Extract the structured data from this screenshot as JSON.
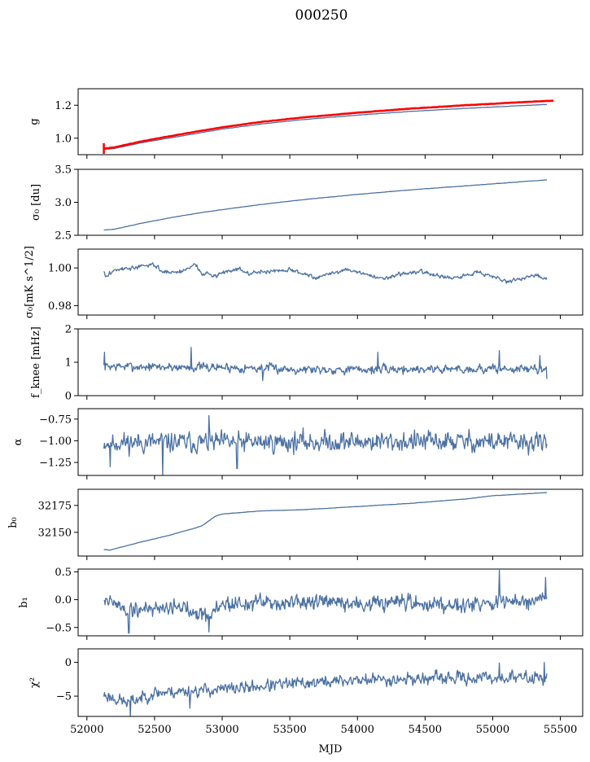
{
  "figure": {
    "title": "000250"
  },
  "chart_data": {
    "type": "line",
    "title": "000250",
    "shared_x": {
      "label": "MJD",
      "range": [
        51935,
        55665
      ],
      "ticks": [
        52000,
        52500,
        53000,
        53500,
        54000,
        54500,
        55000,
        55500
      ],
      "tick_labels": [
        "52000",
        "52500",
        "53000",
        "53500",
        "54000",
        "54500",
        "55000",
        "55500"
      ],
      "data_span": [
        52125,
        55400
      ]
    },
    "panels": [
      {
        "id": "g",
        "ylabel": "g",
        "ylabel_html": "g",
        "ylim": [
          0.9,
          1.3
        ],
        "yticks": [
          1.0,
          1.2
        ],
        "ytick_labels": [
          "1.0",
          "1.2"
        ],
        "series": [
          {
            "name": "g",
            "color": "#4c72a4",
            "kind": "smooth",
            "x": [
              52125,
              52200,
              52400,
              52600,
              52800,
              53000,
              53300,
              53600,
              54000,
              54400,
              54800,
              55200,
              55400
            ],
            "y": [
              0.932,
              0.937,
              0.972,
              1.0,
              1.027,
              1.055,
              1.087,
              1.113,
              1.14,
              1.163,
              1.181,
              1.197,
              1.205
            ]
          },
          {
            "name": "g model",
            "color": "#ff0000",
            "kind": "smooth",
            "width": 2.6,
            "x": [
              52125,
              52200,
              52400,
              52600,
              52800,
              53000,
              53300,
              53600,
              54000,
              54400,
              54800,
              55200,
              55450
            ],
            "y": [
              0.937,
              0.944,
              0.98,
              1.01,
              1.039,
              1.066,
              1.1,
              1.126,
              1.155,
              1.18,
              1.2,
              1.218,
              1.228
            ]
          }
        ],
        "error_bar": {
          "x": 52125,
          "y_low": 0.905,
          "y_high": 0.97,
          "color": "#ff0000"
        }
      },
      {
        "id": "sigma0_du",
        "ylabel": "σ₀ [du]",
        "ylim": [
          2.5,
          3.5
        ],
        "yticks": [
          2.5,
          3.0,
          3.5
        ],
        "ytick_labels": [
          "2.5",
          "3.0",
          "3.5"
        ],
        "series": [
          {
            "name": "sigma0",
            "color": "#4c72a4",
            "kind": "smooth",
            "x": [
              52125,
              52200,
              52400,
              52600,
              52800,
              53000,
              53300,
              53600,
              54000,
              54400,
              54800,
              55200,
              55400
            ],
            "y": [
              2.58,
              2.59,
              2.68,
              2.76,
              2.83,
              2.89,
              2.97,
              3.04,
              3.12,
              3.19,
              3.25,
              3.31,
              3.34
            ]
          }
        ]
      },
      {
        "id": "sigma0_mKs",
        "ylabel": "σ₀[mK s^1/2]",
        "ylim": [
          0.975,
          1.01
        ],
        "yticks": [
          0.98,
          1.0
        ],
        "ytick_labels": [
          "0.98",
          "1.00"
        ],
        "series": [
          {
            "name": "sigma0 calibrated",
            "color": "#4c72a4",
            "kind": "noisy",
            "noise": 0.0009,
            "seed": 3,
            "x": [
              52125,
              52140,
              52200,
              52350,
              52500,
              52550,
              52700,
              52800,
              52850,
              52950,
              53100,
              53200,
              53300,
              53500,
              53700,
              53800,
              53900,
              54000,
              54200,
              54300,
              54500,
              54700,
              54800,
              54900,
              55100,
              55200,
              55300,
              55400
            ],
            "y": [
              0.998,
              0.995,
              0.999,
              1.0,
              1.002,
              0.998,
              0.998,
              1.002,
              0.997,
              0.996,
              1.0,
              0.997,
              0.998,
              0.999,
              0.995,
              0.997,
              0.999,
              0.998,
              0.994,
              0.997,
              0.998,
              0.994,
              0.996,
              0.998,
              0.993,
              0.994,
              0.996,
              0.994
            ]
          }
        ]
      },
      {
        "id": "fknee",
        "ylabel": "f_knee [mHz]",
        "ylim": [
          0,
          2
        ],
        "yticks": [
          0,
          1,
          2
        ],
        "ytick_labels": [
          "0",
          "1",
          "2"
        ],
        "series": [
          {
            "name": "fknee",
            "color": "#4c72a4",
            "kind": "noisy",
            "noise": 0.11,
            "seed": 7,
            "spikes": [
              [
                52130,
                1.3
              ],
              [
                52770,
                1.45
              ],
              [
                53300,
                0.45
              ],
              [
                54150,
                1.3
              ],
              [
                55050,
                1.35
              ],
              [
                55350,
                1.2
              ],
              [
                55400,
                0.5
              ]
            ],
            "x": [
              52125,
              52500,
              53000,
              53500,
              54000,
              54500,
              55000,
              55400
            ],
            "y": [
              0.88,
              0.86,
              0.85,
              0.8,
              0.78,
              0.8,
              0.8,
              0.8
            ]
          }
        ]
      },
      {
        "id": "alpha",
        "ylabel": "α",
        "ylim": [
          -1.4,
          -0.63
        ],
        "yticks": [
          -1.25,
          -1.0,
          -0.75
        ],
        "ytick_labels": [
          "−1.25",
          "−1.00",
          "−0.75"
        ],
        "series": [
          {
            "name": "alpha",
            "color": "#4c72a4",
            "kind": "noisy",
            "noise": 0.095,
            "seed": 11,
            "spikes": [
              [
                52560,
                -1.4
              ],
              [
                52900,
                -0.71
              ],
              [
                52170,
                -1.3
              ],
              [
                53110,
                -1.32
              ]
            ],
            "x": [
              52125,
              53000,
              54000,
              55000,
              55400
            ],
            "y": [
              -1.02,
              -1.02,
              -1.01,
              -1.01,
              -1.03
            ]
          }
        ]
      },
      {
        "id": "b0",
        "ylabel": "b₀",
        "ylim": [
          32128,
          32190
        ],
        "yticks": [
          32150,
          32175
        ],
        "ytick_labels": [
          "32150",
          "32175"
        ],
        "series": [
          {
            "name": "b0",
            "color": "#4c72a4",
            "kind": "smooth",
            "x": [
              52125,
              52170,
              52200,
              52400,
              52600,
              52800,
              52850,
              52950,
              53000,
              53100,
              53300,
              53600,
              54000,
              54400,
              54800,
              55000,
              55400
            ],
            "y": [
              32134,
              32133.5,
              32134.5,
              32141,
              32147,
              32154,
              32156,
              32165,
              32167,
              32168,
              32170,
              32171,
              32174,
              32177,
              32181,
              32184,
              32187
            ]
          }
        ]
      },
      {
        "id": "b1",
        "ylabel": "b₁",
        "ylim": [
          -0.65,
          0.55
        ],
        "yticks": [
          -0.5,
          0.0,
          0.5
        ],
        "ytick_labels": [
          "−0.5",
          "0.0",
          "0.5"
        ],
        "series": [
          {
            "name": "b1",
            "color": "#4c72a4",
            "kind": "noisy",
            "noise": 0.12,
            "seed": 19,
            "spikes": [
              [
                55050,
                0.53
              ],
              [
                55390,
                0.4
              ],
              [
                52310,
                -0.6
              ],
              [
                52900,
                -0.58
              ]
            ],
            "x": [
              52125,
              52150,
              52300,
              52600,
              52800,
              52900,
              53000,
              53500,
              54000,
              54500,
              55000,
              55400
            ],
            "y": [
              0.05,
              0.0,
              -0.2,
              -0.12,
              -0.18,
              -0.3,
              -0.08,
              -0.05,
              -0.08,
              -0.08,
              -0.05,
              -0.04
            ]
          }
        ]
      },
      {
        "id": "chi2",
        "ylabel": "χ²",
        "ylim": [
          -8,
          2
        ],
        "yticks": [
          -5,
          0
        ],
        "ytick_labels": [
          "−5",
          "0"
        ],
        "series": [
          {
            "name": "chi2",
            "color": "#4c72a4",
            "kind": "noisy",
            "noise": 0.75,
            "seed": 23,
            "spikes": [
              [
                52320,
                -8
              ],
              [
                52760,
                -6.8
              ],
              [
                55050,
                -0.1
              ],
              [
                55380,
                0.0
              ]
            ],
            "x": [
              52125,
              52300,
              52500,
              53000,
              53500,
              54000,
              54500,
              55000,
              55400
            ],
            "y": [
              -4.8,
              -6.0,
              -4.5,
              -4.0,
              -3.2,
              -2.6,
              -2.4,
              -2.3,
              -2.2
            ]
          }
        ]
      }
    ]
  }
}
